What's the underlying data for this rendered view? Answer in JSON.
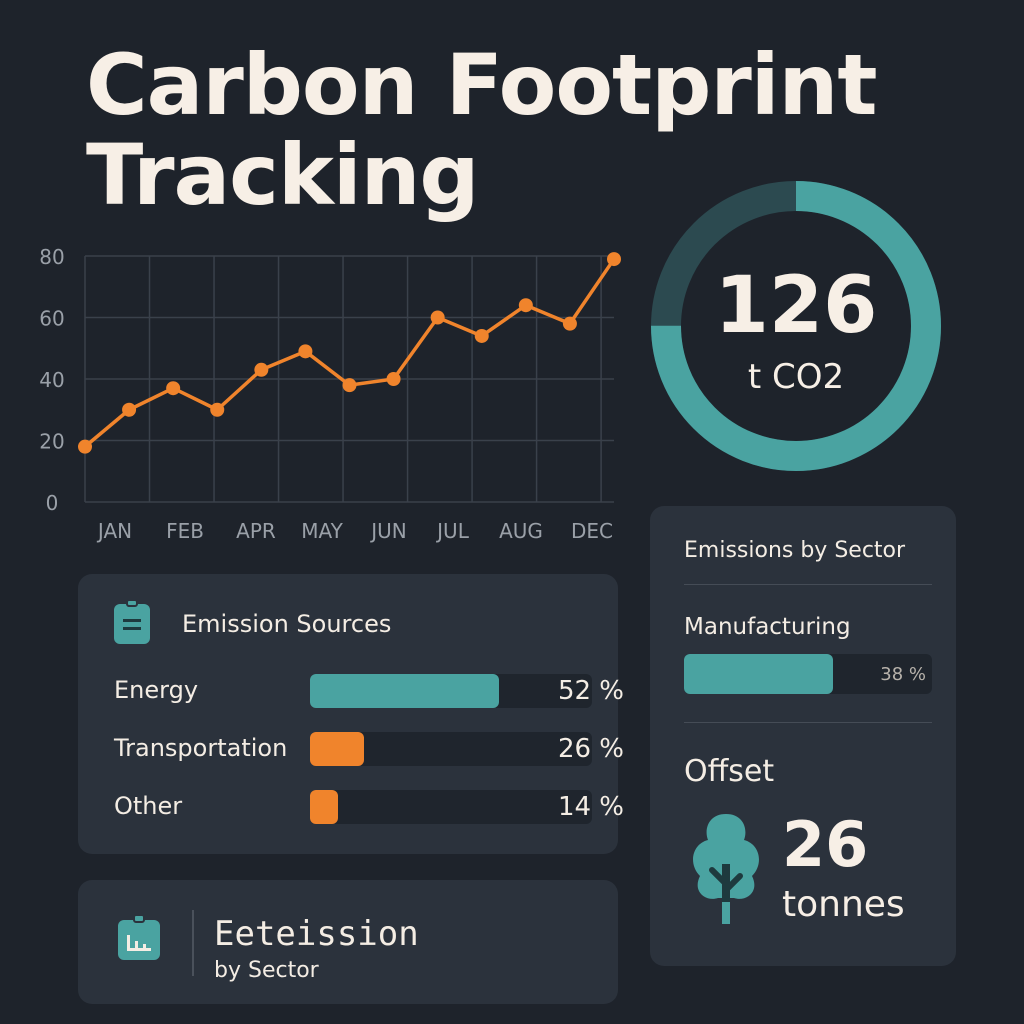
{
  "title": {
    "line1": "Carbon Footprint",
    "line2": "Tracking"
  },
  "colors": {
    "background": "#1e232b",
    "card": "#2b323c",
    "teal": "#4aa3a1",
    "orange": "#f0842c",
    "text": "#f4ede4"
  },
  "chart_data": {
    "type": "line",
    "y_ticks": [
      0,
      20,
      40,
      60,
      80
    ],
    "ylim": [
      0,
      80
    ],
    "x_labels": [
      "JAN",
      "FEB",
      "APR",
      "MAY",
      "JUN",
      "JUL",
      "AUG",
      "DEC"
    ],
    "points": [
      18,
      30,
      37,
      30,
      43,
      49,
      38,
      40,
      60,
      54,
      64,
      58,
      79
    ],
    "grid": true,
    "line_color": "#f0842c"
  },
  "total": {
    "value": "126",
    "unit": "t CO2",
    "ring_fraction": 0.75
  },
  "emission_sources": {
    "title": "Emission Sources",
    "icon": "clipboard-icon",
    "items": [
      {
        "label": "Energy",
        "percent_text": "52 %",
        "fill": 0.67,
        "color": "#4aa3a1"
      },
      {
        "label": "Transportation",
        "percent_text": "26 %",
        "fill": 0.19,
        "color": "#f0842c"
      },
      {
        "label": "Other",
        "percent_text": "14 %",
        "fill": 0.1,
        "color": "#f0842c"
      }
    ]
  },
  "bottom_card": {
    "title": "Eetеission",
    "subtitle": "by Sector",
    "icon": "bar-chart-icon"
  },
  "sector": {
    "title": "Emissions by Sector",
    "manufacturing": {
      "label": "Manufacturing",
      "percent_text": "38 %",
      "fill": 0.6
    },
    "offset": {
      "label": "Offset",
      "value": "26",
      "unit": "tonnes",
      "icon": "tree-icon"
    }
  }
}
